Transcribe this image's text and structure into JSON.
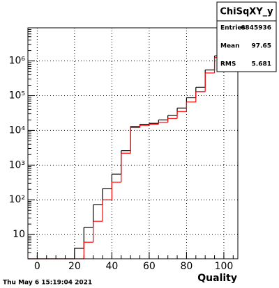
{
  "chart_data": {
    "type": "histogram",
    "bins": [
      -5,
      0,
      5,
      10,
      15,
      20,
      25,
      30,
      35,
      40,
      45,
      50,
      55,
      60,
      65,
      70,
      75,
      80,
      85,
      90,
      95,
      100,
      105
    ],
    "series": [
      {
        "color": "#000000",
        "values": [
          0,
          0,
          0,
          0,
          0,
          4,
          16,
          72,
          210,
          550,
          2600,
          13000,
          15000,
          16000,
          20000,
          27000,
          44000,
          87000,
          175000,
          550000,
          1400000,
          4000000
        ]
      },
      {
        "color": "#ff0000",
        "values": [
          0,
          0,
          0,
          0,
          0,
          0,
          6,
          24,
          100,
          320,
          2200,
          12000,
          14000,
          15000,
          17000,
          22000,
          35000,
          66000,
          130000,
          450000,
          1250000,
          4000000
        ]
      }
    ],
    "xlim": [
      -5,
      107.5
    ],
    "xticks": [
      0,
      20,
      40,
      60,
      80,
      100
    ],
    "ylim": [
      2,
      9000000
    ],
    "log_y": true,
    "yticks": [
      {
        "value": 10,
        "label": "10"
      },
      {
        "value": 100,
        "label": "10²"
      },
      {
        "value": 1000,
        "label": "10³"
      },
      {
        "value": 10000,
        "label": "10⁴"
      },
      {
        "value": 100000,
        "label": "10⁵"
      },
      {
        "value": 1000000,
        "label": "10⁶"
      }
    ],
    "grid": true,
    "x_label": "Quality",
    "stats": {
      "title": "ChiSqXY_y",
      "rows": [
        [
          "Entries",
          "6845936"
        ],
        [
          "Mean",
          "97.65"
        ],
        [
          "RMS",
          "5.681"
        ]
      ]
    },
    "footer": "Thu May  6 15:19:04 2021"
  }
}
